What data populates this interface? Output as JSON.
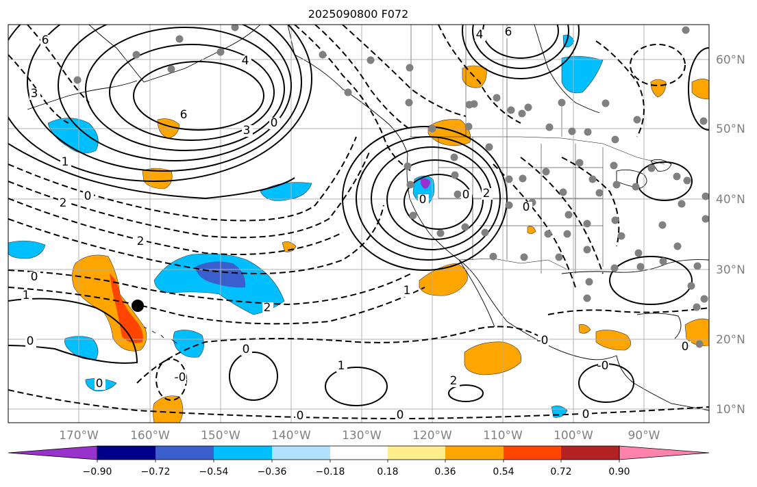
{
  "title": "2025090800 F072",
  "map": {
    "lon_labels": [
      "170°W",
      "160°W",
      "150°W",
      "140°W",
      "130°W",
      "120°W",
      "110°W",
      "100°W",
      "90°W"
    ],
    "lat_labels": [
      "60°N",
      "50°N",
      "40°N",
      "30°N",
      "20°N",
      "10°N"
    ],
    "grid": true,
    "contour_labels": [
      "6",
      "4",
      "3",
      "0",
      "6",
      "3",
      "0",
      "1",
      "2",
      "0",
      "2",
      "0",
      "1",
      "0",
      "-0",
      "0",
      "0",
      "1",
      "2",
      "0",
      "1",
      "2",
      "0",
      "-0",
      "-0",
      "0",
      "6",
      "4",
      "0",
      "0",
      "0",
      "2"
    ]
  },
  "colorbar": {
    "tick_labels": [
      "−0.90",
      "−0.72",
      "−0.54",
      "−0.36",
      "−0.18",
      "0.18",
      "0.36",
      "0.54",
      "0.72",
      "0.90"
    ],
    "colors": [
      "#9932cc",
      "#00008b",
      "#3a5fcd",
      "#00bfff",
      "#b0e2ff",
      "#ffffff",
      "#ffec8b",
      "#ffa500",
      "#ff4500",
      "#b22222",
      "#ff82ab"
    ]
  }
}
